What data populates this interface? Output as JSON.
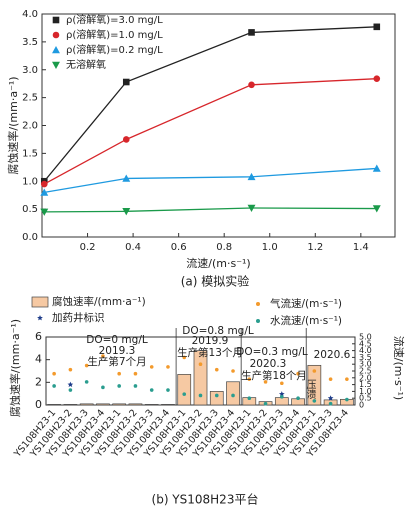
{
  "chart_data": [
    {
      "type": "line",
      "caption": "(a) 模拟实验",
      "xlabel": "流速/(m·s⁻¹)",
      "ylabel": "腐蚀速率/(mm·a⁻¹)",
      "x": [
        0.01,
        0.37,
        0.92,
        1.47
      ],
      "series": [
        {
          "name": "ρ(溶解氧)=3.0 mg/L",
          "color": "#222222",
          "marker": "square",
          "values": [
            1.0,
            2.78,
            3.67,
            3.77
          ]
        },
        {
          "name": "ρ(溶解氧)=1.0 mg/L",
          "color": "#d7262b",
          "marker": "circle",
          "values": [
            0.95,
            1.75,
            2.73,
            2.84
          ]
        },
        {
          "name": "ρ(溶解氧)=0.2 mg/L",
          "color": "#1f9ae0",
          "marker": "triangle",
          "values": [
            0.8,
            1.05,
            1.08,
            1.23
          ]
        },
        {
          "name": "无溶解氧",
          "color": "#1a9a4a",
          "marker": "triangle-down",
          "values": [
            0.45,
            0.46,
            0.52,
            0.51
          ]
        }
      ],
      "xlim": [
        0,
        1.55
      ],
      "xticks": [
        0.2,
        0.4,
        0.6,
        0.8,
        {
          "value": 1,
          "label": "1.0"
        },
        1.2,
        1.4
      ],
      "ylim": [
        0,
        4
      ],
      "yticks": [
        {
          "value": 0,
          "label": "0.0"
        },
        0.5,
        {
          "value": 1,
          "label": "1.0"
        },
        1.5,
        {
          "value": 2,
          "label": "2.0"
        },
        2.5,
        {
          "value": 3,
          "label": "3.0"
        },
        3.5,
        {
          "value": 4,
          "label": "4.0"
        }
      ]
    },
    {
      "type": "bar",
      "caption": "(b) YS108H23平台",
      "ylabel": "腐蚀速率/(mm·a⁻¹)",
      "y2label": "流速/(m·s⁻¹)",
      "categories": [
        "YS108H23-1",
        "YS108H23-2",
        "YS108H23-3",
        "YS108H23-4",
        "YS108H23-1",
        "YS108H23-2",
        "YS108H23-3",
        "YS108H23-4",
        "YS108H23-1",
        "YS108H23-2",
        "YS108H23-3",
        "YS108H23-4",
        "YS108H23-1",
        "YS108H23-2",
        "YS108H23-3",
        "YS108H23-4",
        "YS108H23-1",
        "YS108H23-3",
        "YS108H23-4"
      ],
      "series": [
        {
          "name": "腐蚀速率/(mm·a⁻¹)",
          "mark": "bar",
          "color": "#f6c9a3",
          "values": [
            0.05,
            0.05,
            0.1,
            0.1,
            0.1,
            0.1,
            0.05,
            0.05,
            2.7,
            4.8,
            1.2,
            2.05,
            0.65,
            0.3,
            0.65,
            0.55,
            3.5,
            0.45,
            0.5
          ]
        },
        {
          "name": "加药井标识",
          "mark": "star",
          "axis": "y2",
          "color": "#1f3d8a",
          "values": [
            null,
            1.5,
            null,
            null,
            null,
            null,
            null,
            null,
            null,
            null,
            null,
            null,
            null,
            null,
            0.8,
            null,
            null,
            0.5,
            null
          ]
        },
        {
          "name": "气流速/(m·s⁻¹)",
          "mark": "dot",
          "axis": "y2",
          "color": "#f39a2c",
          "values": [
            2.3,
            2.6,
            2.9,
            3.6,
            2.3,
            2.3,
            2.8,
            2.8,
            3.5,
            3.0,
            2.6,
            2.5,
            1.9,
            1.7,
            1.6,
            2.3,
            2.5,
            1.9,
            1.9
          ]
        },
        {
          "name": "水流速/(m·s⁻¹)",
          "mark": "dot",
          "axis": "y2",
          "color": "#2a9d8f",
          "values": [
            1.4,
            1.1,
            1.7,
            1.3,
            1.4,
            1.4,
            1.1,
            1.1,
            0.8,
            0.7,
            0.7,
            0.7,
            0.5,
            0.1,
            0.6,
            0.5,
            0.3,
            0.1,
            0.4
          ]
        }
      ],
      "annotations": [
        "DO=0 mg/L",
        "2019.3",
        "生产第7个月",
        "DO=0.8 mg/L",
        "2019.9",
        "生产第13个月",
        "DO=0.3 mg/L",
        "2020.3",
        "生产第18个月",
        "2020.6",
        "压溃"
      ],
      "ylim": [
        0,
        6
      ],
      "yticks": [
        0,
        2,
        4,
        6
      ],
      "y2lim": [
        0,
        5
      ],
      "y2ticks": [
        0,
        0.5,
        {
          "value": 1,
          "label": "1.0"
        },
        1.5,
        {
          "value": 2,
          "label": "2.0"
        },
        2.5,
        {
          "value": 3,
          "label": "3.0"
        },
        3.5,
        {
          "value": 4,
          "label": "4.0"
        },
        4.5,
        {
          "value": 5,
          "label": "5.0"
        }
      ]
    }
  ]
}
